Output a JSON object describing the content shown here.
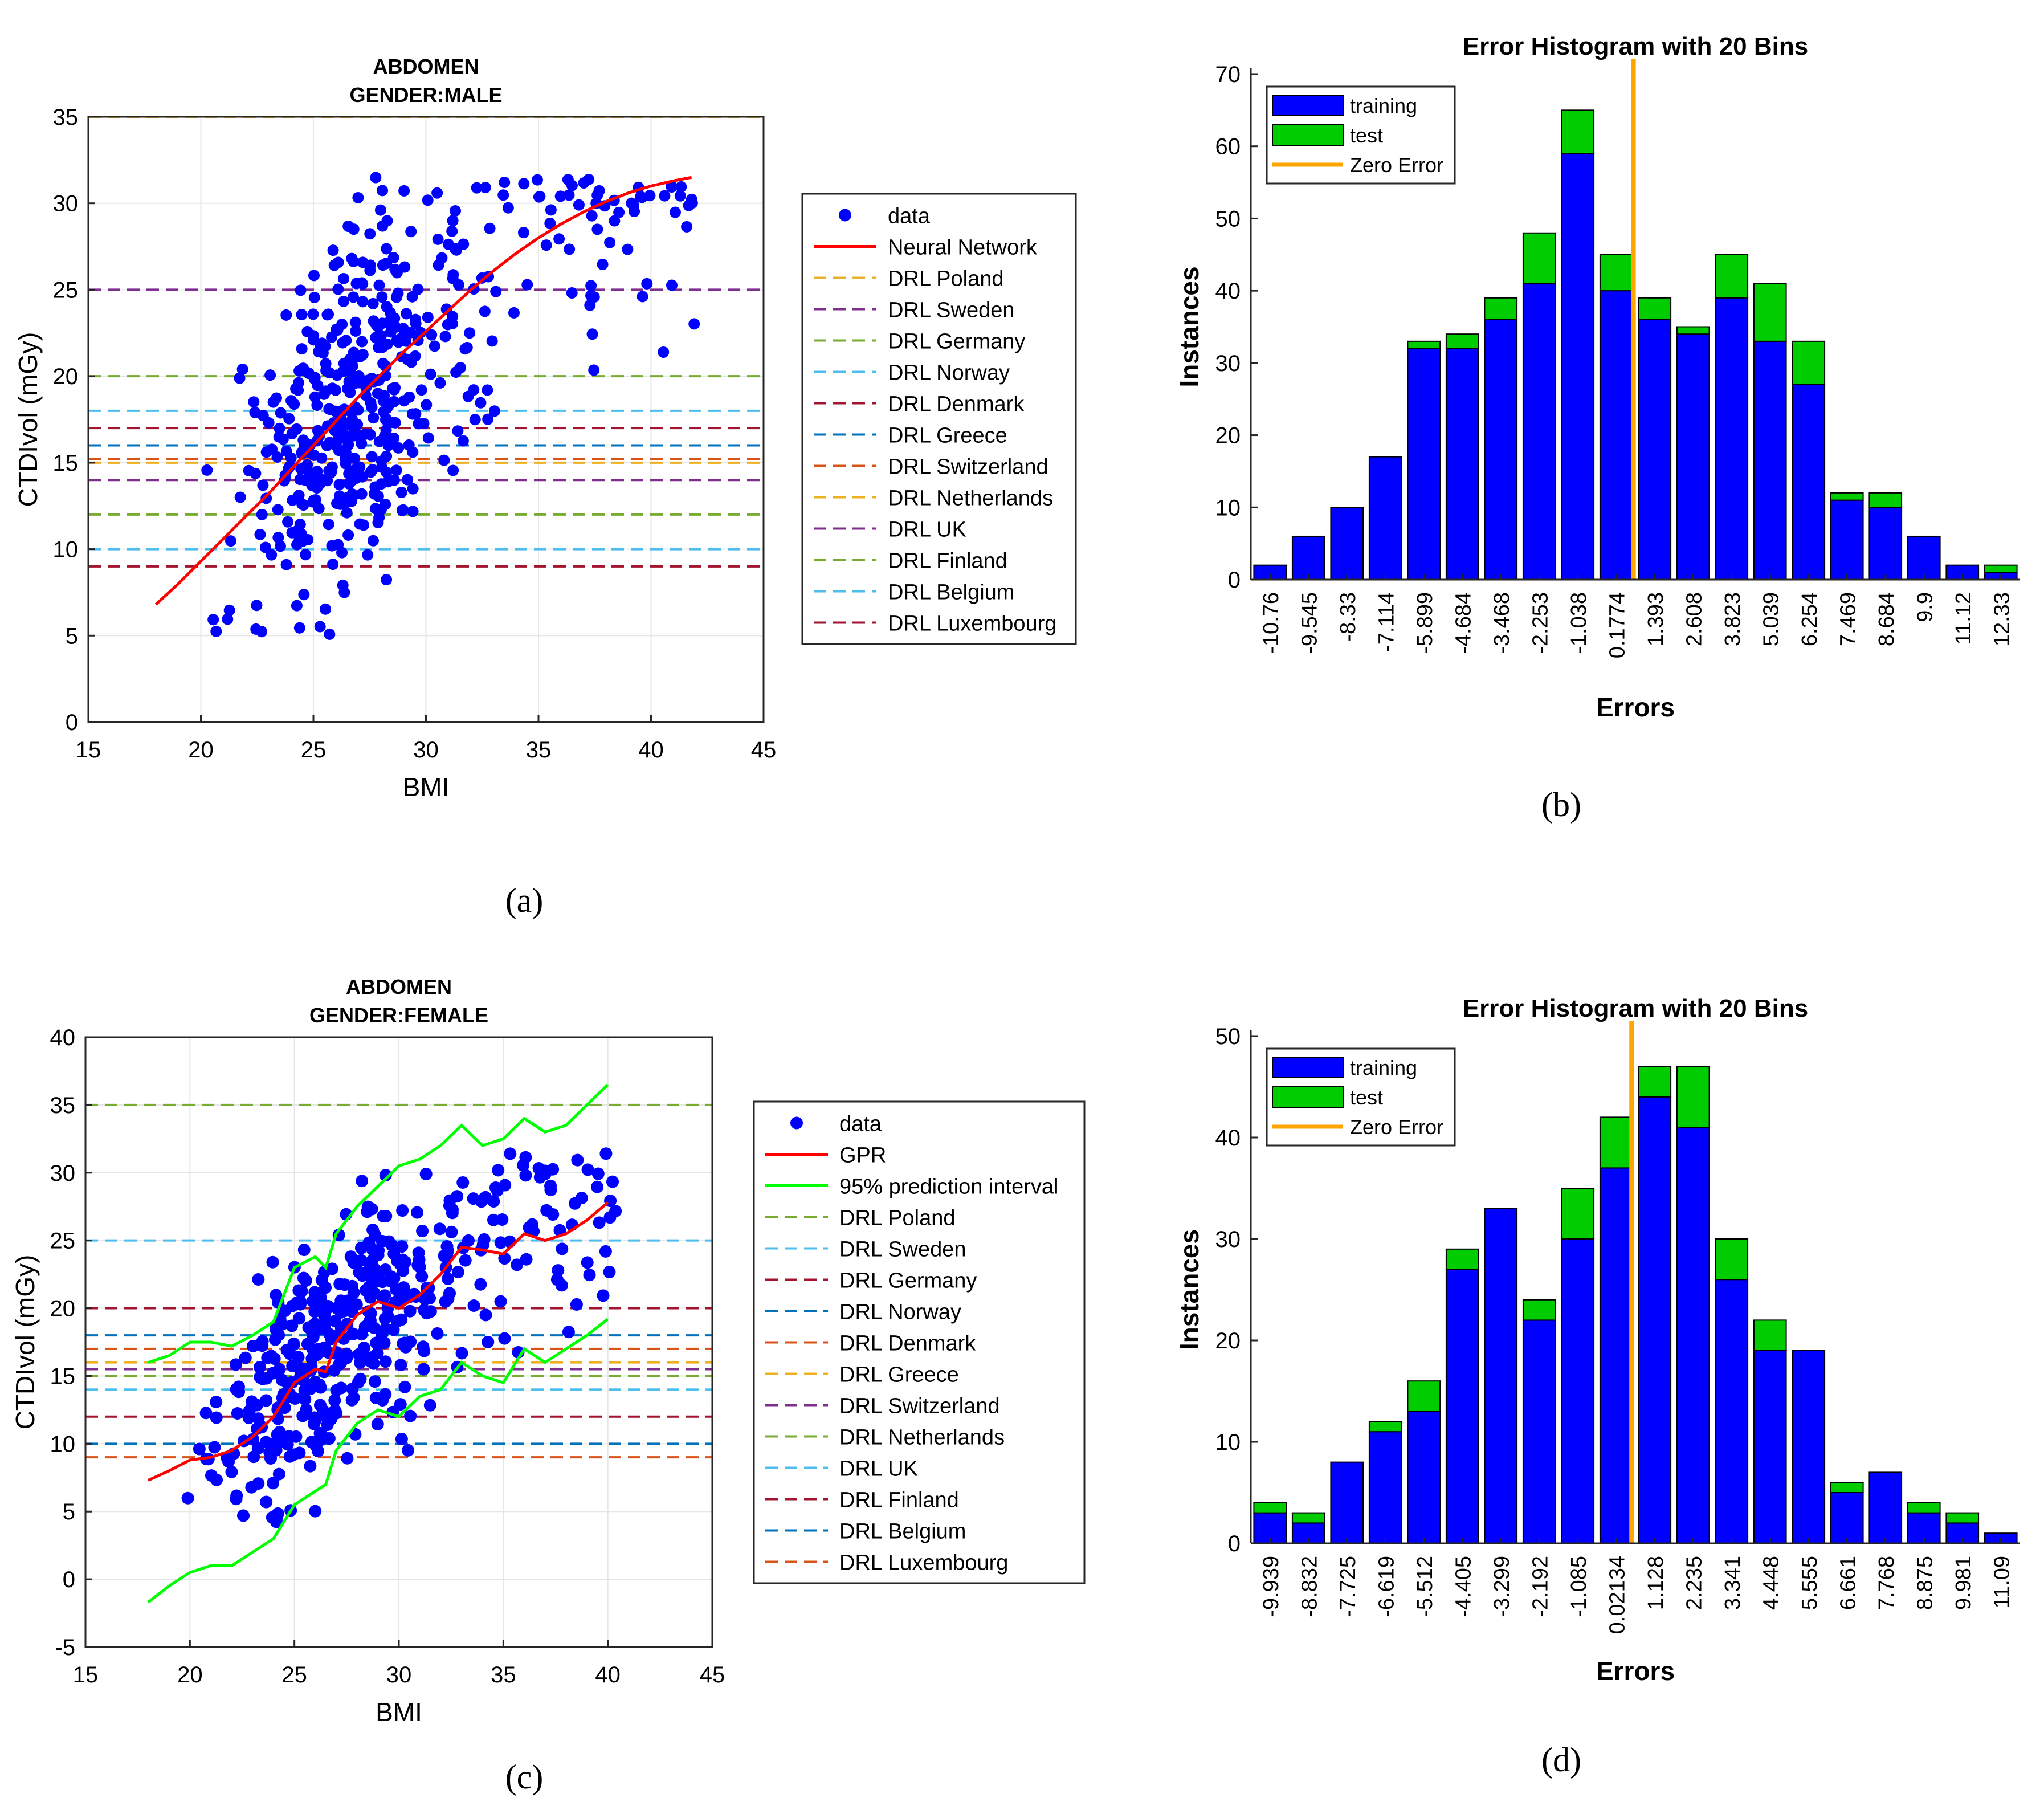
{
  "captions": {
    "a": "(a)",
    "b": "(b)",
    "c": "(c)",
    "d": "(d)"
  },
  "colors": {
    "data": "#0000ff",
    "fit": "#ff0000",
    "interval": "#00ff00",
    "training": "#0000ff",
    "test": "#00cc00",
    "zero": "#ffa500"
  },
  "chart_data": [
    {
      "id": "a",
      "type": "scatter",
      "title": "ABDOMEN",
      "subtitle": "GENDER:MALE",
      "xlabel": "BMI",
      "ylabel": "CTDIvol (mGy)",
      "xlim": [
        15,
        45
      ],
      "ylim": [
        0,
        35
      ],
      "xticks": [
        15,
        20,
        25,
        30,
        35,
        40,
        45
      ],
      "yticks": [
        0,
        5,
        10,
        15,
        20,
        25,
        30,
        35
      ],
      "grid": true,
      "legend_position": "outside-right",
      "legend": [
        "data",
        "Neural Network",
        "DRL Poland",
        "DRL Sweden",
        "DRL Germany",
        "DRL Norway",
        "DRL Denmark",
        "DRL Greece",
        "DRL Switzerland",
        "DRL Netherlands",
        "DRL UK",
        "DRL Finland",
        "DRL Belgium",
        "DRL Luxembourg"
      ],
      "points_summary": "approx. 500 data points scattered between BMI 18-42 and CTDIvol 5-31.5",
      "fit": {
        "name": "Neural Network",
        "x": [
          18,
          19,
          20,
          21,
          22,
          23,
          24,
          25,
          26,
          27,
          28,
          29,
          30,
          31,
          32,
          33,
          34,
          35,
          36,
          37,
          38,
          39,
          40,
          41,
          41.8
        ],
        "y": [
          6.8,
          8.0,
          9.3,
          10.6,
          11.9,
          13.2,
          14.6,
          16.0,
          17.4,
          18.8,
          20.1,
          21.4,
          22.6,
          23.8,
          25.0,
          26.1,
          27.1,
          28.0,
          28.8,
          29.5,
          30.1,
          30.6,
          31.0,
          31.3,
          31.5
        ]
      },
      "drl_lines": [
        {
          "name": "DRL Poland",
          "value": 35,
          "color": "#e6b22e"
        },
        {
          "name": "DRL Sweden",
          "value": 25,
          "color": "#7e2f8e"
        },
        {
          "name": "DRL Germany",
          "value": 20,
          "color": "#77ac30"
        },
        {
          "name": "DRL Norway",
          "value": 18,
          "color": "#4dbeee"
        },
        {
          "name": "DRL Denmark",
          "value": 17,
          "color": "#a2142f"
        },
        {
          "name": "DRL Greece",
          "value": 16,
          "color": "#0072bd"
        },
        {
          "name": "DRL Switzerland",
          "value": 15.2,
          "color": "#d95319"
        },
        {
          "name": "DRL Netherlands",
          "value": 15,
          "color": "#edb120"
        },
        {
          "name": "DRL UK",
          "value": 14,
          "color": "#7e2f8e"
        },
        {
          "name": "DRL Finland",
          "value": 12,
          "color": "#77ac30"
        },
        {
          "name": "DRL Belgium",
          "value": 10,
          "color": "#4dbeee"
        },
        {
          "name": "DRL Luxembourg",
          "value": 9,
          "color": "#a2142f"
        }
      ]
    },
    {
      "id": "b",
      "type": "bar",
      "stacked": true,
      "title": "Error Histogram with 20 Bins",
      "xlabel": "Errors",
      "ylabel": "Instances",
      "ylim": [
        0,
        70
      ],
      "yticks": [
        0,
        10,
        20,
        30,
        40,
        50,
        60,
        70
      ],
      "legend_position": "top-left",
      "legend": [
        "training",
        "test",
        "Zero Error"
      ],
      "categories": [
        "-10.76",
        "-9.545",
        "-8.33",
        "-7.114",
        "-5.899",
        "-4.684",
        "-3.468",
        "-2.253",
        "-1.038",
        "0.1774",
        "1.393",
        "2.608",
        "3.823",
        "5.039",
        "6.254",
        "7.469",
        "8.684",
        "9.9",
        "11.12",
        "12.33"
      ],
      "series": [
        {
          "name": "training",
          "values": [
            2,
            6,
            10,
            17,
            32,
            32,
            36,
            41,
            59,
            40,
            36,
            34,
            39,
            33,
            27,
            11,
            10,
            6,
            2,
            1
          ]
        },
        {
          "name": "test",
          "values": [
            0,
            0,
            0,
            0,
            1,
            2,
            3,
            7,
            6,
            5,
            3,
            1,
            6,
            8,
            6,
            1,
            2,
            0,
            0,
            1
          ]
        }
      ],
      "zero_error_position": 9.45
    },
    {
      "id": "c",
      "type": "scatter",
      "title": "ABDOMEN",
      "subtitle": "GENDER:FEMALE",
      "xlabel": "BMI",
      "ylabel": "CTDIvol (mGy)",
      "xlim": [
        15,
        45
      ],
      "ylim": [
        -5,
        40
      ],
      "xticks": [
        15,
        20,
        25,
        30,
        35,
        40,
        45
      ],
      "yticks": [
        -5,
        0,
        5,
        10,
        15,
        20,
        25,
        30,
        35,
        40
      ],
      "grid": true,
      "legend_position": "outside-right",
      "legend": [
        "data",
        "GPR",
        "95% prediction interval",
        "DRL Poland",
        "DRL Sweden",
        "DRL Germany",
        "DRL Norway",
        "DRL Denmark",
        "DRL Greece",
        "DRL Switzerland",
        "DRL Netherlands",
        "DRL UK",
        "DRL Finland",
        "DRL Belgium",
        "DRL Luxembourg"
      ],
      "points_summary": "approx. 450 data points scattered between BMI 18-40 and CTDIvol 4-31.5",
      "fit": {
        "name": "GPR",
        "x": [
          18,
          19,
          20,
          21,
          22,
          23,
          24,
          25,
          26,
          26.5,
          27,
          28,
          29,
          30,
          31,
          32,
          33,
          34,
          35,
          36,
          37,
          38,
          39,
          40
        ],
        "y": [
          7.3,
          8.0,
          8.8,
          9.0,
          9.5,
          10.5,
          12.0,
          14.5,
          15.5,
          15.3,
          17.5,
          19.5,
          20.5,
          20.0,
          21.0,
          22.5,
          24.5,
          24.3,
          24.0,
          25.5,
          25.0,
          25.5,
          26.5,
          27.8
        ]
      },
      "upper": {
        "name": "95% prediction interval",
        "x": [
          18,
          19,
          20,
          21,
          22,
          23,
          24,
          25,
          26,
          26.5,
          27,
          28,
          29,
          30,
          31,
          32,
          33,
          34,
          35,
          36,
          37,
          38,
          39,
          40
        ],
        "y": [
          16.0,
          16.5,
          17.5,
          17.5,
          17.2,
          18.0,
          19.0,
          23.0,
          23.8,
          23.0,
          25.5,
          27.5,
          29.0,
          30.5,
          31.0,
          32.0,
          33.5,
          32.0,
          32.5,
          34.0,
          33.0,
          33.5,
          35.0,
          36.5
        ]
      },
      "lower": {
        "name": "95% prediction interval",
        "x": [
          18,
          19,
          20,
          21,
          22,
          23,
          24,
          25,
          26,
          26.5,
          27,
          28,
          29,
          30,
          31,
          32,
          33,
          34,
          35,
          36,
          37,
          38,
          39,
          40
        ],
        "y": [
          -1.7,
          -0.5,
          0.5,
          1.0,
          1.0,
          2.0,
          3.0,
          5.5,
          6.5,
          7.0,
          9.5,
          11.5,
          12.5,
          12.0,
          13.5,
          14.0,
          16.0,
          15.0,
          14.5,
          17.0,
          16.0,
          17.0,
          18.0,
          19.2
        ]
      },
      "drl_lines": [
        {
          "name": "DRL Poland",
          "value": 35,
          "color": "#77ac30"
        },
        {
          "name": "DRL Sweden",
          "value": 25,
          "color": "#4dbeee"
        },
        {
          "name": "DRL Germany",
          "value": 20,
          "color": "#a2142f"
        },
        {
          "name": "DRL Norway",
          "value": 18,
          "color": "#0072bd"
        },
        {
          "name": "DRL Denmark",
          "value": 17,
          "color": "#d95319"
        },
        {
          "name": "DRL Greece",
          "value": 16,
          "color": "#edb120"
        },
        {
          "name": "DRL Switzerland",
          "value": 15.5,
          "color": "#7e2f8e"
        },
        {
          "name": "DRL Netherlands",
          "value": 15,
          "color": "#77ac30"
        },
        {
          "name": "DRL UK",
          "value": 14,
          "color": "#4dbeee"
        },
        {
          "name": "DRL Finland",
          "value": 12,
          "color": "#a2142f"
        },
        {
          "name": "DRL Belgium",
          "value": 10,
          "color": "#0072bd"
        },
        {
          "name": "DRL Luxembourg",
          "value": 9,
          "color": "#d95319"
        }
      ]
    },
    {
      "id": "d",
      "type": "bar",
      "stacked": true,
      "title": "Error Histogram with 20 Bins",
      "xlabel": "Errors",
      "ylabel": "Instances",
      "ylim": [
        0,
        50
      ],
      "yticks": [
        0,
        10,
        20,
        30,
        40,
        50
      ],
      "legend_position": "top-left",
      "legend": [
        "training",
        "test",
        "Zero Error"
      ],
      "categories": [
        "-9.939",
        "-8.832",
        "-7.725",
        "-6.619",
        "-5.512",
        "-4.405",
        "-3.299",
        "-2.192",
        "-1.085",
        "0.02134",
        "1.128",
        "2.235",
        "3.341",
        "4.448",
        "5.555",
        "6.661",
        "7.768",
        "8.875",
        "9.981",
        "11.09"
      ],
      "series": [
        {
          "name": "training",
          "values": [
            3,
            2,
            8,
            11,
            13,
            27,
            33,
            22,
            30,
            37,
            44,
            41,
            26,
            19,
            19,
            5,
            7,
            3,
            2,
            1
          ]
        },
        {
          "name": "test",
          "values": [
            1,
            1,
            0,
            1,
            3,
            2,
            0,
            2,
            5,
            5,
            3,
            6,
            4,
            3,
            0,
            1,
            0,
            1,
            1,
            0
          ]
        }
      ],
      "zero_error_position": 9.4
    }
  ]
}
